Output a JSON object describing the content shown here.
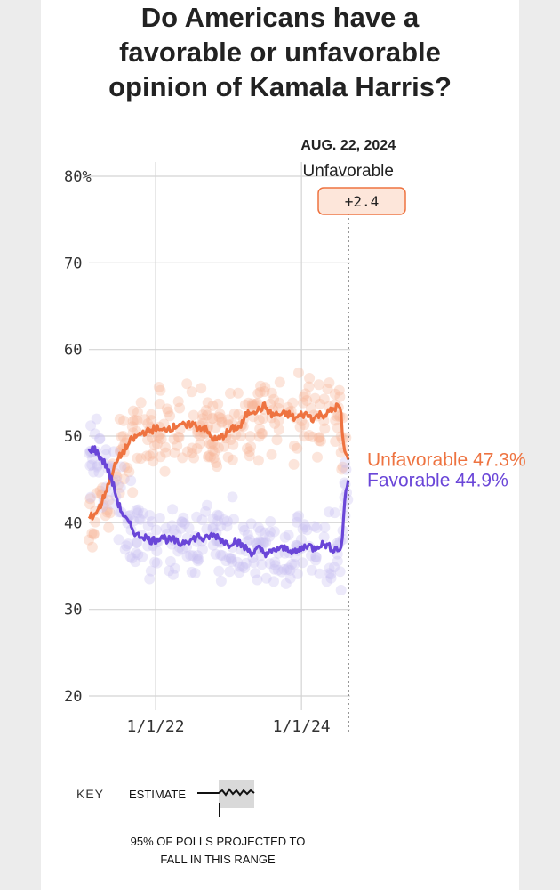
{
  "title_lines": [
    "Do Americans have a",
    "favorable or unfavorable",
    "opinion of Kamala Harris?"
  ],
  "colors": {
    "unfavorable": "#ee7340",
    "favorable": "#6a46d8",
    "unfavorable_dots": "#f7b497",
    "favorable_dots": "#c9c0f2",
    "margin_badge_fill": "#fde6da",
    "margin_badge_stroke": "#ee7340",
    "grid": "#d4d4d4"
  },
  "key": {
    "label": "KEY",
    "estimate_label": "ESTIMATE",
    "range_note": "95% OF POLLS PROJECTED TO FALL IN THIS RANGE"
  },
  "chart_data": {
    "type": "line",
    "title": "Do Americans have a favorable or unfavorable opinion of Kamala Harris?",
    "y_ticks": [
      "80%",
      "70",
      "60",
      "50",
      "40",
      "30",
      "20"
    ],
    "ylim": [
      20,
      80
    ],
    "x_ticks": [
      {
        "label": "1/1/22",
        "x": "2022-01-01"
      },
      {
        "label": "1/1/24",
        "x": "2024-01-01"
      }
    ],
    "xlim": [
      "2021-02-01",
      "2024-09-01"
    ],
    "current": {
      "date_label": "AUG. 22, 2024",
      "date": "2024-08-22",
      "leader": "Unfavorable",
      "margin": "+2.4"
    },
    "series": [
      {
        "name": "Unfavorable",
        "end_label": "Unfavorable 47.3%",
        "end_value": 47.3,
        "points": [
          [
            "2021-02-01",
            40.5
          ],
          [
            "2021-03-01",
            41
          ],
          [
            "2021-04-01",
            42
          ],
          [
            "2021-05-01",
            44
          ],
          [
            "2021-06-01",
            46
          ],
          [
            "2021-07-01",
            47.5
          ],
          [
            "2021-08-01",
            48.5
          ],
          [
            "2021-09-01",
            49.5
          ],
          [
            "2021-10-01",
            50
          ],
          [
            "2021-11-01",
            50.5
          ],
          [
            "2021-12-01",
            50.5
          ],
          [
            "2022-01-01",
            51
          ],
          [
            "2022-02-01",
            50.5
          ],
          [
            "2022-03-01",
            51
          ],
          [
            "2022-04-01",
            51
          ],
          [
            "2022-05-01",
            51.5
          ],
          [
            "2022-06-01",
            51
          ],
          [
            "2022-07-01",
            51.5
          ],
          [
            "2022-08-01",
            51
          ],
          [
            "2022-09-01",
            51
          ],
          [
            "2022-10-01",
            50
          ],
          [
            "2022-11-01",
            49.5
          ],
          [
            "2022-12-01",
            50
          ],
          [
            "2023-01-01",
            50.5
          ],
          [
            "2023-02-01",
            51
          ],
          [
            "2023-03-01",
            51
          ],
          [
            "2023-04-01",
            52.5
          ],
          [
            "2023-05-01",
            53
          ],
          [
            "2023-06-01",
            53
          ],
          [
            "2023-07-01",
            53.5
          ],
          [
            "2023-08-01",
            52.5
          ],
          [
            "2023-09-01",
            52.5
          ],
          [
            "2023-10-01",
            52.5
          ],
          [
            "2023-11-01",
            52.5
          ],
          [
            "2023-12-01",
            52
          ],
          [
            "2024-01-01",
            52.5
          ],
          [
            "2024-02-01",
            52.5
          ],
          [
            "2024-03-01",
            52
          ],
          [
            "2024-04-01",
            52.5
          ],
          [
            "2024-05-01",
            52.5
          ],
          [
            "2024-06-01",
            53
          ],
          [
            "2024-07-01",
            53.5
          ],
          [
            "2024-07-15",
            53
          ],
          [
            "2024-07-25",
            50
          ],
          [
            "2024-08-05",
            48
          ],
          [
            "2024-08-22",
            47.3
          ]
        ]
      },
      {
        "name": "Favorable",
        "end_label": "Favorable 44.9%",
        "end_value": 44.9,
        "points": [
          [
            "2021-02-01",
            48.5
          ],
          [
            "2021-03-01",
            48.5
          ],
          [
            "2021-04-01",
            47.5
          ],
          [
            "2021-05-01",
            46.5
          ],
          [
            "2021-06-01",
            44.5
          ],
          [
            "2021-07-01",
            42
          ],
          [
            "2021-08-01",
            40.5
          ],
          [
            "2021-09-01",
            39.5
          ],
          [
            "2021-10-01",
            38.5
          ],
          [
            "2021-11-01",
            38.5
          ],
          [
            "2021-12-01",
            38
          ],
          [
            "2022-01-01",
            38
          ],
          [
            "2022-02-01",
            38.5
          ],
          [
            "2022-03-01",
            38
          ],
          [
            "2022-04-01",
            38
          ],
          [
            "2022-05-01",
            37.5
          ],
          [
            "2022-06-01",
            38
          ],
          [
            "2022-07-01",
            38
          ],
          [
            "2022-08-01",
            38.5
          ],
          [
            "2022-09-01",
            38
          ],
          [
            "2022-10-01",
            38.5
          ],
          [
            "2022-11-01",
            38.5
          ],
          [
            "2022-12-01",
            38
          ],
          [
            "2023-01-01",
            37.5
          ],
          [
            "2023-02-01",
            38
          ],
          [
            "2023-03-01",
            37.5
          ],
          [
            "2023-04-01",
            37
          ],
          [
            "2023-05-01",
            36.5
          ],
          [
            "2023-06-01",
            37
          ],
          [
            "2023-07-01",
            36.5
          ],
          [
            "2023-08-01",
            36.5
          ],
          [
            "2023-09-01",
            37
          ],
          [
            "2023-10-01",
            37
          ],
          [
            "2023-11-01",
            37
          ],
          [
            "2023-12-01",
            36.5
          ],
          [
            "2024-01-01",
            37
          ],
          [
            "2024-02-01",
            37.5
          ],
          [
            "2024-03-01",
            37
          ],
          [
            "2024-04-01",
            37.5
          ],
          [
            "2024-05-01",
            37.5
          ],
          [
            "2024-06-01",
            37
          ],
          [
            "2024-07-01",
            37
          ],
          [
            "2024-07-20",
            37
          ],
          [
            "2024-07-28",
            40
          ],
          [
            "2024-08-05",
            43
          ],
          [
            "2024-08-22",
            44.9
          ]
        ]
      }
    ]
  }
}
